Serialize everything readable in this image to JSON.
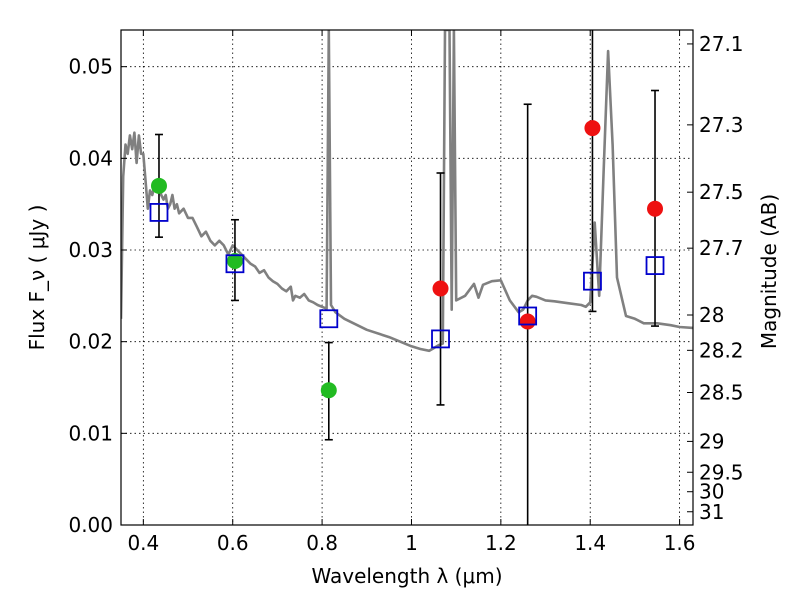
{
  "chart_data": {
    "type": "scatter",
    "x_axis": {
      "label": "Wavelength  λ (μm)",
      "range": [
        0.35,
        1.63
      ],
      "ticks": [
        0.4,
        0.6,
        0.8,
        1.0,
        1.2,
        1.4,
        1.6
      ],
      "tick_labels": [
        "0.4",
        "0.6",
        "0.8",
        "1",
        "1.2",
        "1.4",
        "1.6"
      ],
      "grid": true
    },
    "y_axis": {
      "label": "Flux  F_ν  ( μJy )",
      "range": [
        0.0,
        0.054
      ],
      "ticks": [
        0.0,
        0.01,
        0.02,
        0.03,
        0.04,
        0.05
      ],
      "tick_labels": [
        "0.00",
        "0.01",
        "0.02",
        "0.03",
        "0.04",
        "0.05"
      ],
      "grid": true
    },
    "y2_axis": {
      "label": "Magnitude (AB)",
      "scale": "magnitude_AB",
      "tick_labels": [
        "27.1",
        "27.3",
        "27.5",
        "27.7",
        "28",
        "28.2",
        "28.5",
        "29",
        "29.5",
        "30",
        "31"
      ],
      "tick_values": [
        27.1,
        27.3,
        27.5,
        27.7,
        28,
        28.2,
        28.5,
        29,
        29.5,
        30,
        31
      ]
    },
    "model_spectrum": {
      "color": "#808080",
      "points": [
        [
          0.35,
          0.0225
        ],
        [
          0.355,
          0.038
        ],
        [
          0.36,
          0.0415
        ],
        [
          0.365,
          0.0405
        ],
        [
          0.37,
          0.0425
        ],
        [
          0.375,
          0.041
        ],
        [
          0.38,
          0.0428
        ],
        [
          0.385,
          0.0395
        ],
        [
          0.39,
          0.0425
        ],
        [
          0.395,
          0.0405
        ],
        [
          0.4,
          0.0405
        ],
        [
          0.405,
          0.0375
        ],
        [
          0.41,
          0.0345
        ],
        [
          0.415,
          0.0365
        ],
        [
          0.42,
          0.036
        ],
        [
          0.425,
          0.037
        ],
        [
          0.43,
          0.0365
        ],
        [
          0.435,
          0.0375
        ],
        [
          0.44,
          0.036
        ],
        [
          0.445,
          0.0355
        ],
        [
          0.45,
          0.036
        ],
        [
          0.455,
          0.0345
        ],
        [
          0.46,
          0.035
        ],
        [
          0.465,
          0.036
        ],
        [
          0.47,
          0.0345
        ],
        [
          0.475,
          0.035
        ],
        [
          0.48,
          0.034
        ],
        [
          0.49,
          0.0345
        ],
        [
          0.5,
          0.0335
        ],
        [
          0.51,
          0.0335
        ],
        [
          0.52,
          0.0325
        ],
        [
          0.53,
          0.0315
        ],
        [
          0.54,
          0.032
        ],
        [
          0.55,
          0.031
        ],
        [
          0.56,
          0.0305
        ],
        [
          0.57,
          0.031
        ],
        [
          0.58,
          0.0305
        ],
        [
          0.59,
          0.0295
        ],
        [
          0.6,
          0.0305
        ],
        [
          0.61,
          0.03
        ],
        [
          0.62,
          0.0295
        ],
        [
          0.63,
          0.029
        ],
        [
          0.64,
          0.0285
        ],
        [
          0.65,
          0.0282
        ],
        [
          0.66,
          0.0275
        ],
        [
          0.67,
          0.0278
        ],
        [
          0.68,
          0.027
        ],
        [
          0.69,
          0.0266
        ],
        [
          0.7,
          0.0263
        ],
        [
          0.71,
          0.0258
        ],
        [
          0.72,
          0.0255
        ],
        [
          0.73,
          0.026
        ],
        [
          0.735,
          0.0245
        ],
        [
          0.74,
          0.025
        ],
        [
          0.75,
          0.0248
        ],
        [
          0.76,
          0.0252
        ],
        [
          0.77,
          0.0245
        ],
        [
          0.78,
          0.0243
        ],
        [
          0.79,
          0.024
        ],
        [
          0.8,
          0.0238
        ],
        [
          0.81,
          0.0236
        ],
        [
          0.815,
          0.054
        ],
        [
          0.82,
          0.024
        ],
        [
          0.83,
          0.0232
        ],
        [
          0.85,
          0.0225
        ],
        [
          0.9,
          0.0213
        ],
        [
          0.95,
          0.0205
        ],
        [
          1.0,
          0.0195
        ],
        [
          1.02,
          0.0192
        ],
        [
          1.04,
          0.019
        ],
        [
          1.05,
          0.0193
        ],
        [
          1.06,
          0.0196
        ],
        [
          1.07,
          0.0198
        ],
        [
          1.075,
          0.054
        ],
        [
          1.085,
          0.054
        ],
        [
          1.09,
          0.0235
        ],
        [
          1.095,
          0.054
        ],
        [
          1.1,
          0.0245
        ],
        [
          1.12,
          0.025
        ],
        [
          1.14,
          0.0263
        ],
        [
          1.15,
          0.0248
        ],
        [
          1.16,
          0.0262
        ],
        [
          1.18,
          0.0266
        ],
        [
          1.2,
          0.0267
        ],
        [
          1.22,
          0.0245
        ],
        [
          1.24,
          0.0232
        ],
        [
          1.25,
          0.0235
        ],
        [
          1.26,
          0.0245
        ],
        [
          1.27,
          0.025
        ],
        [
          1.28,
          0.0249
        ],
        [
          1.3,
          0.0245
        ],
        [
          1.32,
          0.0244
        ],
        [
          1.35,
          0.0242
        ],
        [
          1.38,
          0.024
        ],
        [
          1.39,
          0.0238
        ],
        [
          1.4,
          0.0243
        ],
        [
          1.41,
          0.033
        ],
        [
          1.42,
          0.025
        ],
        [
          1.43,
          0.0385
        ],
        [
          1.44,
          0.0517
        ],
        [
          1.45,
          0.0415
        ],
        [
          1.46,
          0.027
        ],
        [
          1.48,
          0.0228
        ],
        [
          1.5,
          0.0225
        ],
        [
          1.52,
          0.022
        ],
        [
          1.55,
          0.022
        ],
        [
          1.58,
          0.0218
        ],
        [
          1.6,
          0.0216
        ],
        [
          1.63,
          0.0215
        ]
      ]
    },
    "series": [
      {
        "marker": "circle",
        "color": "#22bb22",
        "points": [
          {
            "x": 0.435,
            "y": 0.037
          },
          {
            "x": 0.605,
            "y": 0.0288
          },
          {
            "x": 0.815,
            "y": 0.0147
          }
        ]
      },
      {
        "marker": "circle",
        "color": "#ee1111",
        "points": [
          {
            "x": 1.065,
            "y": 0.0258
          },
          {
            "x": 1.26,
            "y": 0.0222
          },
          {
            "x": 1.405,
            "y": 0.0433
          },
          {
            "x": 1.545,
            "y": 0.0345
          }
        ]
      },
      {
        "marker": "open-square",
        "color": "#0000cc",
        "points": [
          {
            "x": 0.435,
            "y": 0.0341,
            "yerr_low": 0.0314,
            "yerr_high": 0.0426
          },
          {
            "x": 0.605,
            "y": 0.0285,
            "yerr_low": 0.0245,
            "yerr_high": 0.0333
          },
          {
            "x": 0.815,
            "y": 0.0225,
            "yerr_low": 0.0093,
            "yerr_high": 0.0199
          },
          {
            "x": 1.065,
            "y": 0.0203,
            "yerr_low": 0.0131,
            "yerr_high": 0.0384
          },
          {
            "x": 1.26,
            "y": 0.0228,
            "yerr_low": 0.0,
            "yerr_high": 0.0459
          },
          {
            "x": 1.405,
            "y": 0.0266,
            "yerr_low": 0.0233,
            "yerr_high": 0.054
          },
          {
            "x": 1.545,
            "y": 0.0283,
            "yerr_low": 0.0217,
            "yerr_high": 0.0474
          }
        ]
      }
    ]
  }
}
